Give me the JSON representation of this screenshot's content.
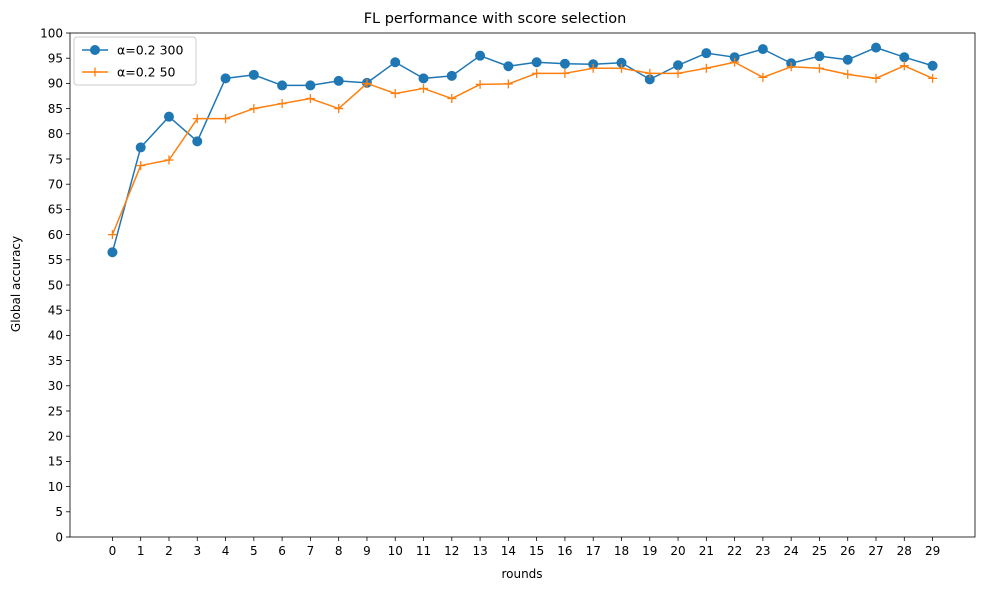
{
  "chart_data": {
    "type": "line",
    "title": "FL performance with score selection",
    "xlabel": "rounds",
    "ylabel": "Global accuracy",
    "x": [
      0,
      1,
      2,
      3,
      4,
      5,
      6,
      7,
      8,
      9,
      10,
      11,
      12,
      13,
      14,
      15,
      16,
      17,
      18,
      19,
      20,
      21,
      22,
      23,
      24,
      25,
      26,
      27,
      28,
      29
    ],
    "x_ticks": [
      "0",
      "1",
      "2",
      "3",
      "4",
      "5",
      "6",
      "7",
      "8",
      "9",
      "10",
      "11",
      "12",
      "13",
      "14",
      "15",
      "16",
      "17",
      "18",
      "19",
      "20",
      "21",
      "22",
      "23",
      "24",
      "25",
      "26",
      "27",
      "28",
      "29"
    ],
    "ylim": [
      0,
      100
    ],
    "y_ticks": [
      "0",
      "5",
      "10",
      "15",
      "20",
      "25",
      "30",
      "35",
      "40",
      "45",
      "50",
      "55",
      "60",
      "65",
      "70",
      "75",
      "80",
      "85",
      "90",
      "95",
      "100"
    ],
    "grid": false,
    "legend_position": "top-left",
    "series": [
      {
        "name": "α=0.2 300",
        "color": "#1f77b4",
        "marker": "circle",
        "values": [
          56.5,
          77.3,
          83.4,
          78.5,
          91.0,
          91.7,
          89.6,
          89.6,
          90.5,
          90.1,
          94.2,
          91.0,
          91.5,
          95.5,
          93.4,
          94.2,
          93.9,
          93.8,
          94.1,
          90.8,
          93.6,
          96.0,
          95.2,
          96.8,
          94.0,
          95.4,
          94.7,
          97.1,
          95.2,
          93.5
        ]
      },
      {
        "name": "α=0.2 50",
        "color": "#ff7f0e",
        "marker": "plus",
        "values": [
          60.0,
          73.7,
          74.8,
          83.0,
          83.0,
          85.0,
          86.0,
          87.0,
          85.0,
          90.0,
          88.0,
          89.0,
          87.0,
          89.8,
          89.9,
          92.0,
          92.0,
          93.0,
          93.0,
          92.0,
          92.0,
          93.0,
          94.2,
          91.2,
          93.3,
          93.0,
          91.8,
          91.0,
          93.5,
          91.0
        ]
      }
    ]
  }
}
